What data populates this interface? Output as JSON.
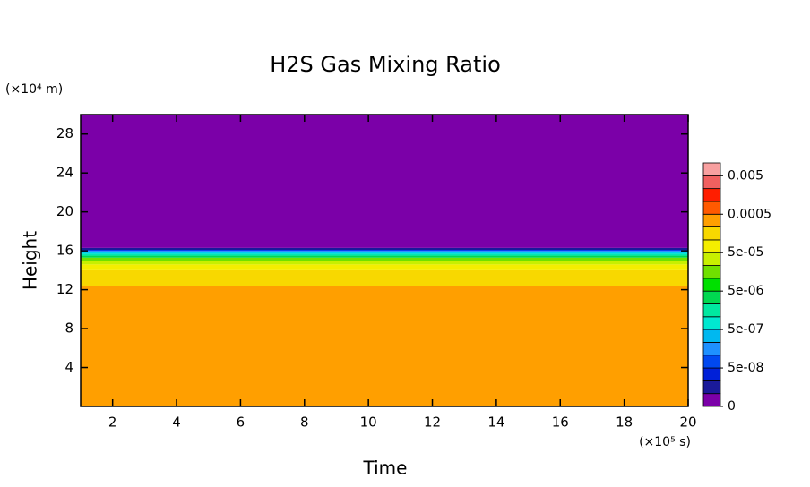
{
  "chart_data": {
    "type": "contour",
    "title": "H2S Gas Mixing Ratio",
    "x_label": "Time",
    "y_label": "Height",
    "x_unit": "(×10⁵ s)",
    "y_unit": "(×10⁴ m)",
    "xlim": [
      1,
      20
    ],
    "xticks": [
      2,
      4,
      6,
      8,
      10,
      12,
      14,
      16,
      18,
      20
    ],
    "ylim": [
      0,
      30
    ],
    "yticks": [
      4,
      8,
      12,
      16,
      20,
      24,
      28
    ],
    "bands": {
      "colors": [
        "#ff9f00",
        "#f8d800",
        "#f4ee00",
        "#c8f000",
        "#70e000",
        "#00d850",
        "#00e8b0",
        "#00d0f0",
        "#1e90ff",
        "#0038f0",
        "#1a1a9a",
        "#7b00a8"
      ],
      "tops": [
        12.4,
        14,
        14.6,
        15,
        15.3,
        15.5,
        15.7,
        15.9,
        16,
        16.1,
        16.3,
        30
      ]
    },
    "colorbar": {
      "colors": [
        "#7b00a8",
        "#1a1a9a",
        "#0020d8",
        "#0048f0",
        "#1e90ff",
        "#00b8f0",
        "#00e8d0",
        "#00e8a0",
        "#00d850",
        "#00e000",
        "#70e000",
        "#c8f000",
        "#f4ee00",
        "#f8d800",
        "#ff9f00",
        "#ff5a00",
        "#ff1e00",
        "#f06060",
        "#f8a0a0"
      ],
      "ticks": [
        {
          "value": 0,
          "label": "0"
        },
        {
          "value": 5e-08,
          "label": "5e-08"
        },
        {
          "value": 5e-07,
          "label": "5e-07"
        },
        {
          "value": 5e-06,
          "label": "5e-06"
        },
        {
          "value": 5e-05,
          "label": "5e-05"
        },
        {
          "value": 0.0005,
          "label": "0.0005"
        },
        {
          "value": 0.005,
          "label": "0.005"
        }
      ]
    }
  }
}
